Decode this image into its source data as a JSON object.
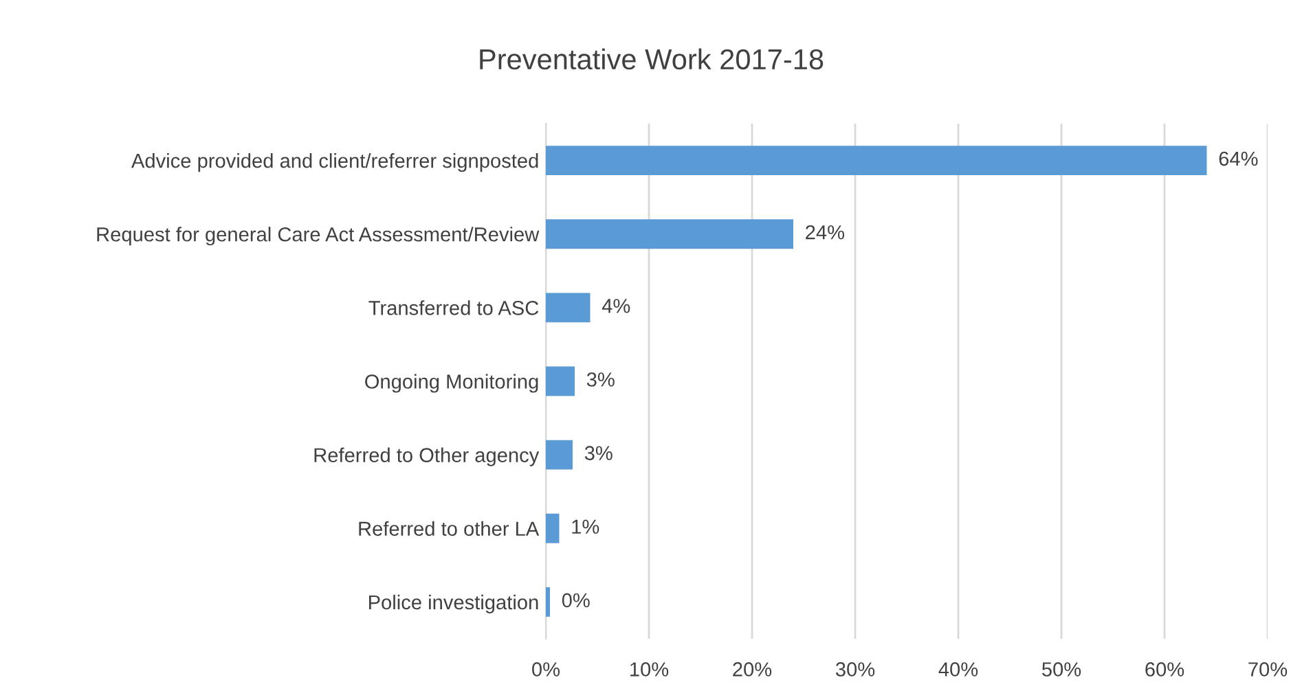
{
  "chart_data": {
    "type": "bar",
    "orientation": "horizontal",
    "title": "Preventative Work 2017-18",
    "categories": [
      "Advice provided and client/referrer signposted",
      "Request for general Care Act Assessment/Review",
      "Transferred to ASC",
      "Ongoing Monitoring",
      "Referred to Other agency",
      "Referred to other LA",
      "Police investigation"
    ],
    "values": [
      64.1,
      24.0,
      4.3,
      2.8,
      2.6,
      1.3,
      0.4
    ],
    "value_labels": [
      "64%",
      "24%",
      "4%",
      "3%",
      "3%",
      "1%",
      "0%"
    ],
    "color": "#5b9bd5",
    "xlim": [
      0,
      70
    ],
    "xticks": [
      {
        "value": 0,
        "label": "0%"
      },
      {
        "value": 10,
        "label": "10%"
      },
      {
        "value": 20,
        "label": "20%"
      },
      {
        "value": 30,
        "label": "30%"
      },
      {
        "value": 40,
        "label": "40%"
      },
      {
        "value": 50,
        "label": "50%"
      },
      {
        "value": 60,
        "label": "60%"
      },
      {
        "value": 70,
        "label": "70%"
      }
    ],
    "grid": "x",
    "legend": false
  }
}
